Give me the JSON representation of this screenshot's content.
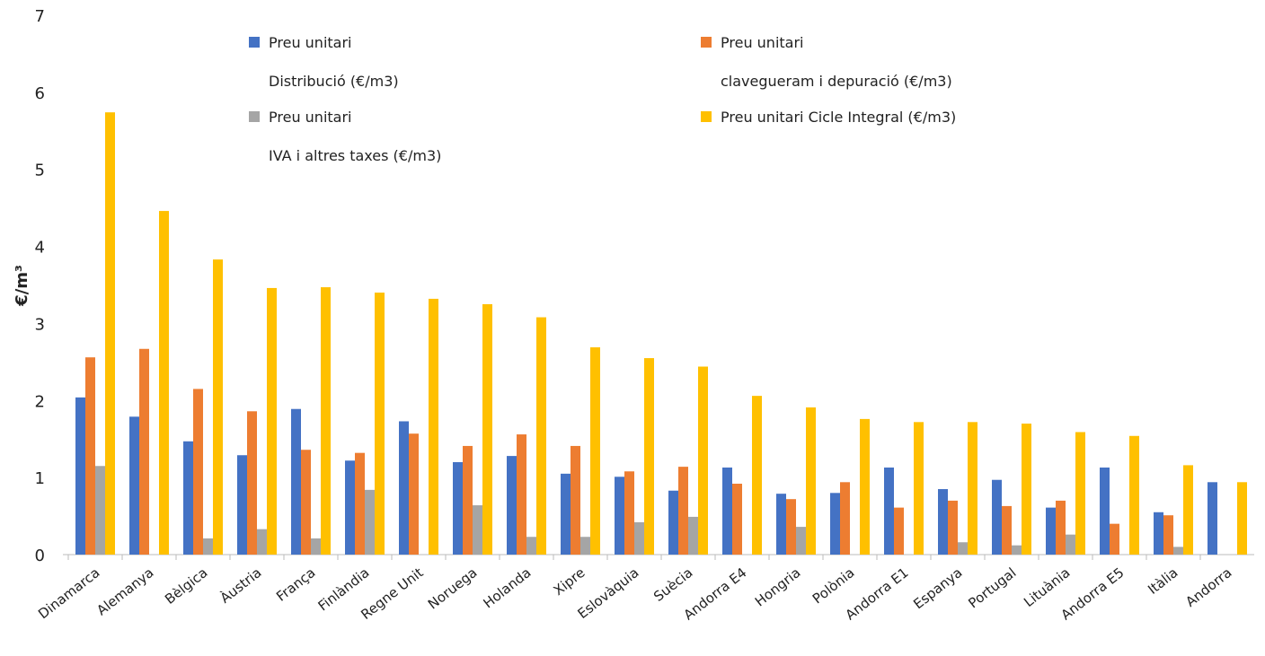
{
  "chart_data": {
    "type": "bar",
    "y_label": "€/m³",
    "categories": [
      "Dinamarca",
      "Alemanya",
      "Bèlgica",
      "Àustria",
      "França",
      "Finlàndia",
      "Regne Unit",
      "Noruega",
      "Holanda",
      "Xipre",
      "Eslovàquia",
      "Suècia",
      "Andorra E4",
      "Hongria",
      "Polònia",
      "Andorra E1",
      "Espanya",
      "Portugal",
      "Lituània",
      "Andorra E5",
      "Itàlia",
      "Andorra"
    ],
    "series": [
      {
        "name": "Preu unitari\nDistribució (€/m3)",
        "color": "#4472c4",
        "values": [
          2.04,
          1.79,
          1.47,
          1.29,
          1.89,
          1.22,
          1.73,
          1.2,
          1.28,
          1.05,
          1.01,
          0.83,
          1.13,
          0.79,
          0.8,
          1.13,
          0.85,
          0.97,
          0.61,
          1.13,
          0.55,
          0.94
        ]
      },
      {
        "name": "Preu unitari\nclavegueram i depuració (€/m3)",
        "color": "#ed7d31",
        "values": [
          2.56,
          2.67,
          2.15,
          1.86,
          1.36,
          1.32,
          1.57,
          1.41,
          1.56,
          1.41,
          1.08,
          1.14,
          0.92,
          0.72,
          0.94,
          0.61,
          0.7,
          0.63,
          0.7,
          0.4,
          0.51,
          null
        ]
      },
      {
        "name": "Preu unitari\nIVA i altres taxes (€/m3)",
        "color": "#a5a5a5",
        "values": [
          1.15,
          null,
          0.21,
          0.33,
          0.21,
          0.84,
          null,
          0.64,
          0.23,
          0.23,
          0.42,
          0.49,
          null,
          0.36,
          null,
          null,
          0.16,
          0.12,
          0.26,
          null,
          0.1,
          null
        ]
      },
      {
        "name": "Preu unitari Cicle Integral (€/m3)",
        "color": "#ffc000",
        "values": [
          5.74,
          4.46,
          3.83,
          3.46,
          3.47,
          3.4,
          3.32,
          3.25,
          3.08,
          2.69,
          2.55,
          2.44,
          2.06,
          1.91,
          1.76,
          1.72,
          1.72,
          1.7,
          1.59,
          1.54,
          1.16,
          0.94
        ]
      }
    ],
    "ylim": [
      0,
      7
    ],
    "yticks": [
      0,
      1,
      2,
      3,
      4,
      5,
      6,
      7
    ],
    "grid": false,
    "legend": "top"
  }
}
